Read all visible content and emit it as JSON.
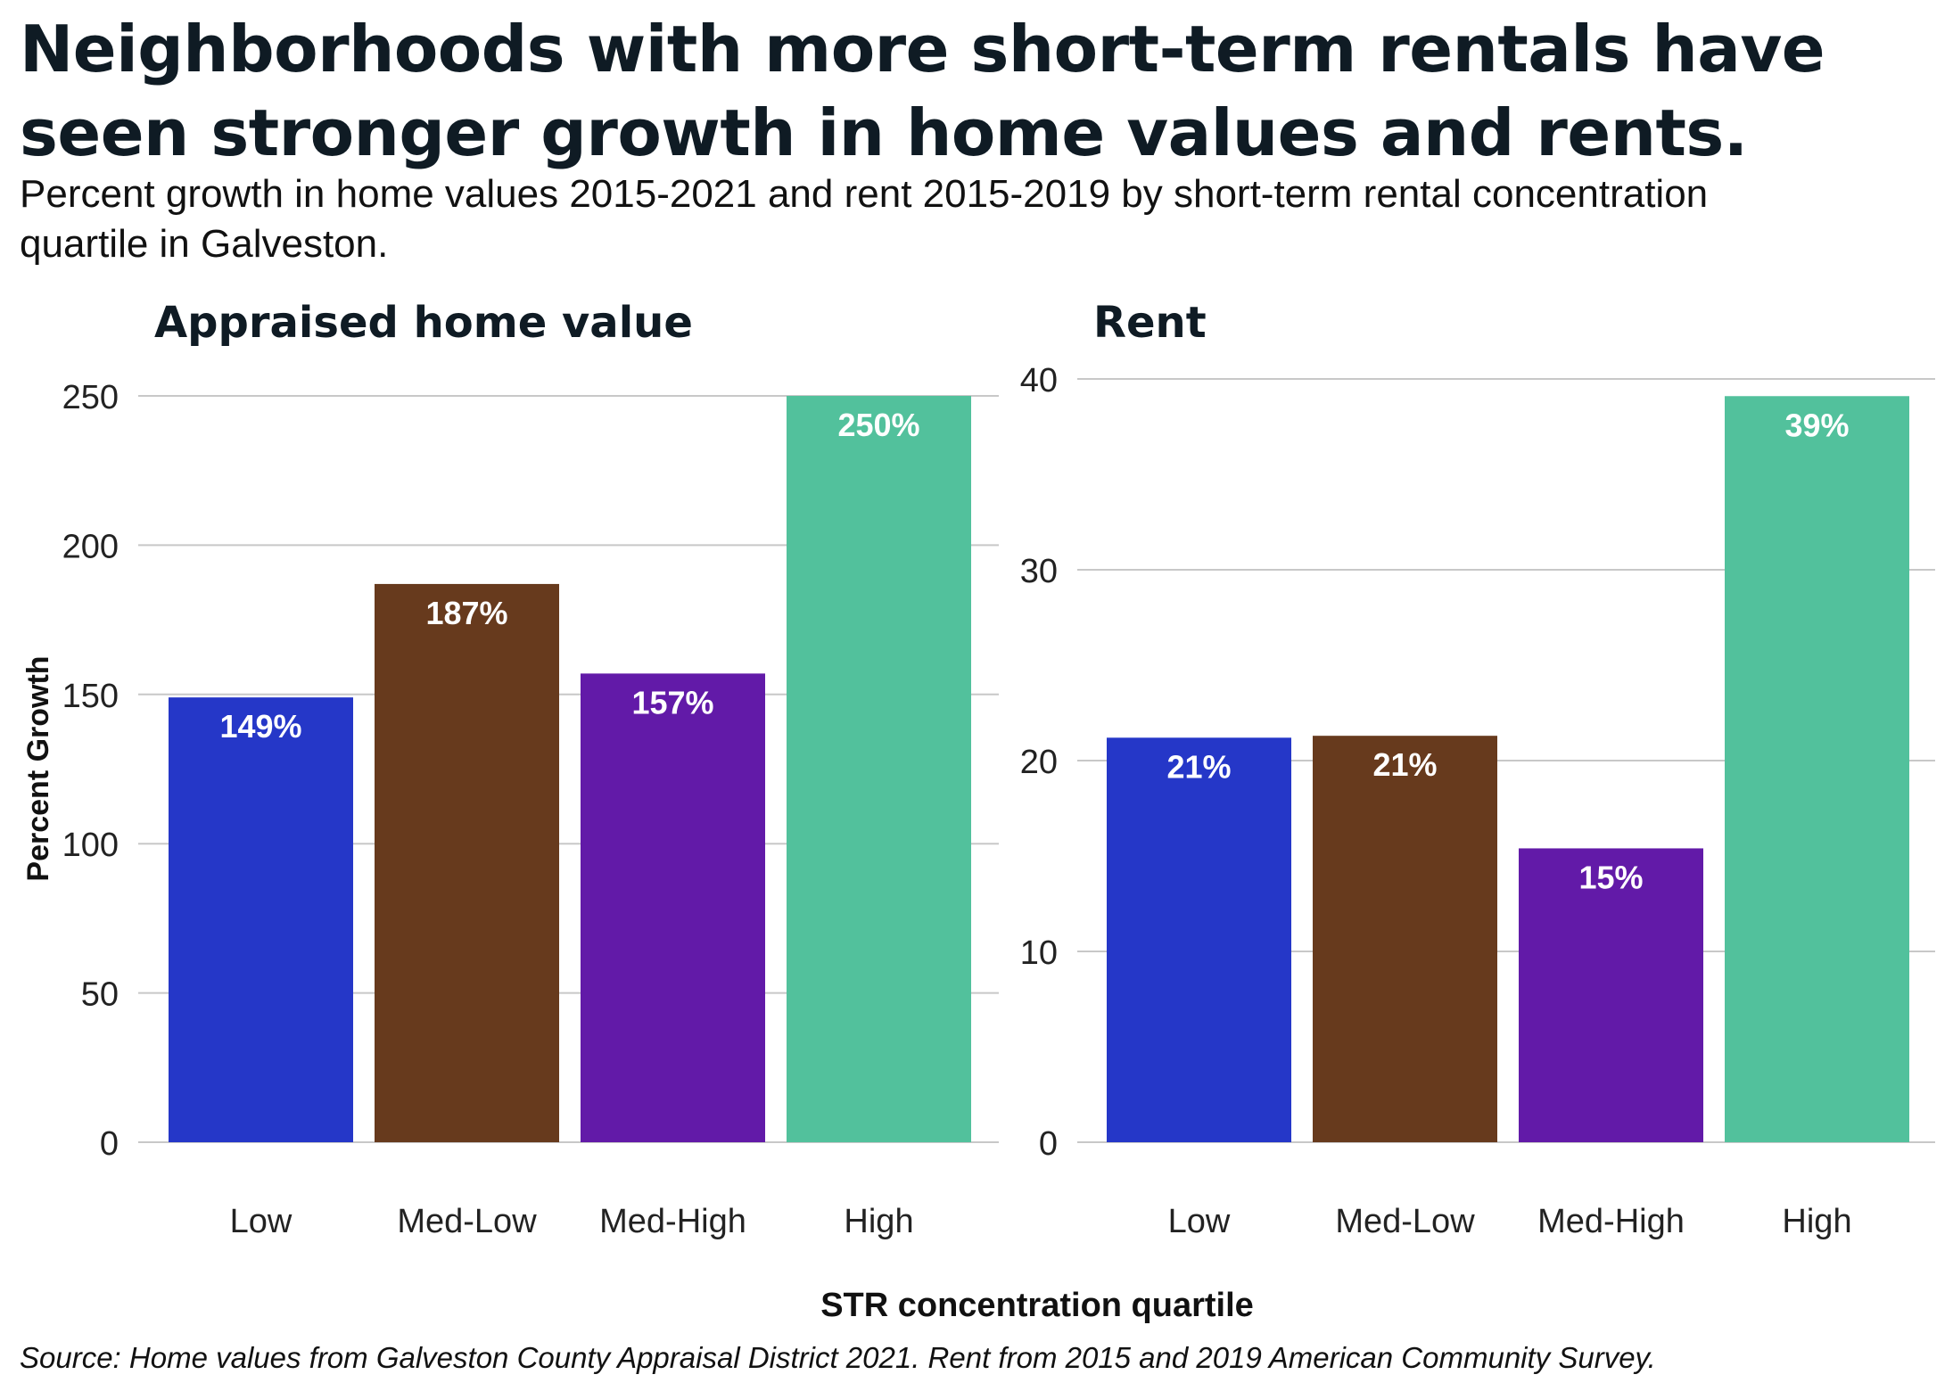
{
  "title": "Neighborhoods with more short-term rentals have seen stronger growth in home values and rents.",
  "subtitle": "Percent growth in home values 2015-2021 and rent 2015-2019 by short-term rental concentration quartile in Galveston.",
  "caption": "Source: Home values from Galveston County Appraisal District 2021. Rent from 2015 and 2019 American Community Survey.",
  "colors": {
    "Low": "#2537c8",
    "Med-Low": "#673a1d",
    "Med-High": "#621aa8",
    "High": "#52c19c",
    "gridline": "#c8c8c8",
    "bar_label": "#ffffff"
  },
  "chart_data": {
    "type": "bar",
    "xlabel": "STR concentration quartile",
    "ylabel": "Percent Growth",
    "categories": [
      "Low",
      "Med-Low",
      "Med-High",
      "High"
    ],
    "grid": true,
    "panels": [
      {
        "title": "Appraised home value",
        "values": [
          149,
          187,
          157,
          250
        ],
        "labels": [
          "149%",
          "187%",
          "157%",
          "250%"
        ],
        "ylim": [
          0,
          250
        ],
        "yticks": [
          0,
          50,
          100,
          150,
          200,
          250
        ]
      },
      {
        "title": "Rent",
        "values": [
          21.2,
          21.3,
          15.4,
          39.1
        ],
        "labels": [
          "21%",
          "21%",
          "15%",
          "39%"
        ],
        "ylim": [
          0,
          40
        ],
        "yticks": [
          0,
          10,
          20,
          30,
          40
        ]
      }
    ]
  }
}
